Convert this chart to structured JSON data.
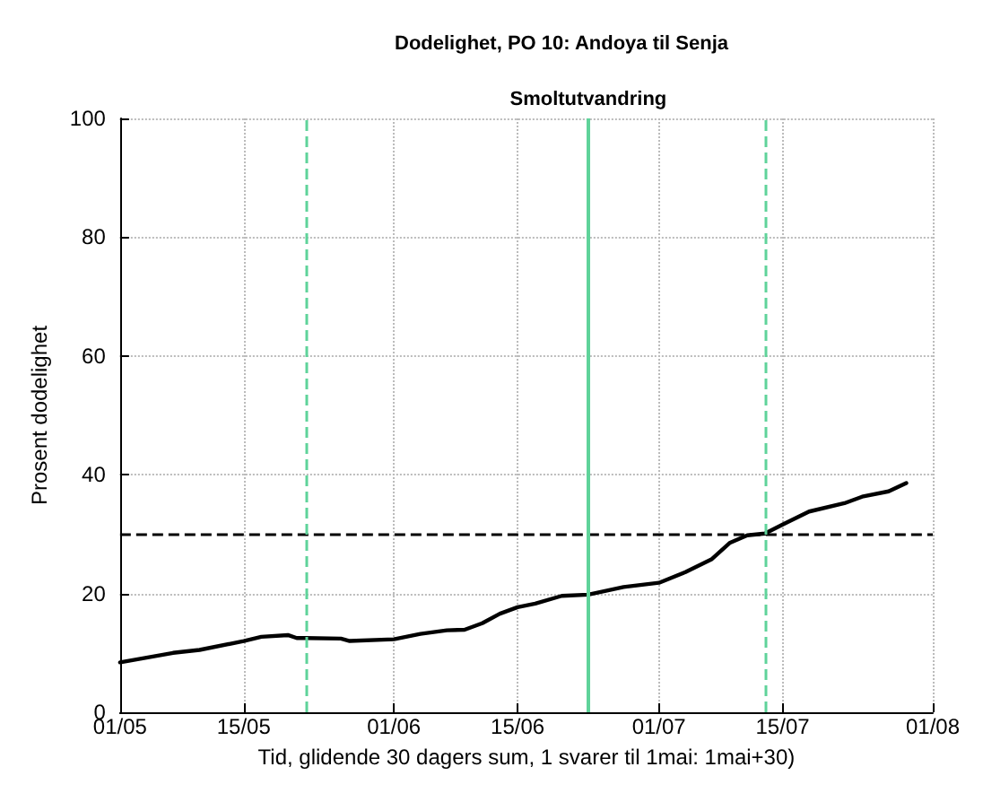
{
  "chart_data": {
    "type": "line",
    "title": "Dodelighet, PO 10: Andoya til Senja",
    "xlabel": "Tid, glidende 30 dagers sum, 1 svarer til 1mai: 1mai+30)",
    "ylabel": "Prosent dodelighet",
    "x": [
      "--05-01",
      "--05-07",
      "--05-10",
      "--05-15",
      "--05-17",
      "--05-20",
      "--05-21",
      "--05-22",
      "--05-26",
      "--05-27",
      "--06-01",
      "--06-04",
      "--06-07",
      "--06-09",
      "--06-11",
      "--06-13",
      "--06-15",
      "--06-17",
      "--06-20",
      "--06-23",
      "--06-27",
      "--07-01",
      "--07-04",
      "--07-07",
      "--07-09",
      "--07-11",
      "--07-13",
      "--07-15",
      "--07-18",
      "--07-22",
      "--07-24",
      "--07-27",
      "--07-29"
    ],
    "series": [
      {
        "color": "#000000",
        "values": [
          8.4,
          10.0,
          10.5,
          12.0,
          12.7,
          13.0,
          12.5,
          12.5,
          12.4,
          12.0,
          12.3,
          13.2,
          13.8,
          13.9,
          15.0,
          16.6,
          17.7,
          18.3,
          19.6,
          19.8,
          21.1,
          21.8,
          23.6,
          25.8,
          28.5,
          29.8,
          30.1,
          31.6,
          33.8,
          35.2,
          36.3,
          37.2,
          38.6
        ]
      }
    ],
    "xlim": [
      "--05-01",
      "--08-01"
    ],
    "xticks": [
      {
        "value": "--05-01",
        "label": "01/05"
      },
      {
        "value": "--05-15",
        "label": "15/05"
      },
      {
        "value": "--06-01",
        "label": "01/06"
      },
      {
        "value": "--06-15",
        "label": "15/06"
      },
      {
        "value": "--07-01",
        "label": "01/07"
      },
      {
        "value": "--07-15",
        "label": "15/07"
      },
      {
        "value": "--08-01",
        "label": "01/08"
      }
    ],
    "ylim": [
      0,
      100
    ],
    "yticks": [
      0,
      20,
      40,
      60,
      80,
      100
    ],
    "grid": true,
    "marker": "none",
    "line_style": "solid",
    "ref_lines": [
      {
        "axis": "y",
        "value": 30,
        "color": "#000000",
        "line_style": "dashed"
      },
      {
        "axis": "x",
        "value": "--05-22",
        "color": "#5fd39a",
        "line_style": "dashed"
      },
      {
        "axis": "x",
        "value": "--06-23",
        "color": "#5fd39a",
        "line_style": "solid",
        "label": "Smoltutvandring"
      },
      {
        "axis": "x",
        "value": "--07-13",
        "color": "#5fd39a",
        "line_style": "dashed"
      }
    ]
  }
}
